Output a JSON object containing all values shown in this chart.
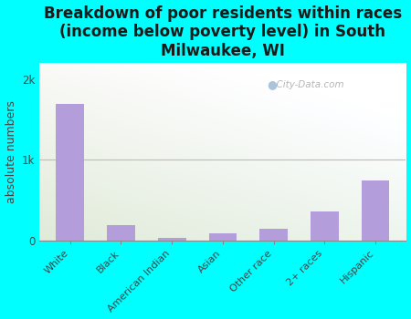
{
  "categories": [
    "White",
    "Black",
    "American Indian",
    "Asian",
    "Other race",
    "2+ races",
    "Hispanic"
  ],
  "values": [
    1700,
    190,
    28,
    85,
    140,
    360,
    740
  ],
  "bar_color": "#b39ddb",
  "title": "Breakdown of poor residents within races\n(income below poverty level) in South\nMilwaukee, WI",
  "ylabel": "absolute numbers",
  "ylim": [
    0,
    2200
  ],
  "ytick_labels": [
    "0",
    "1k",
    "2k"
  ],
  "ytick_values": [
    0,
    1000,
    2000
  ],
  "background_color": "#00ffff",
  "watermark_text": "City-Data.com",
  "title_fontsize": 12,
  "ylabel_fontsize": 9,
  "title_color": "#1a1a1a",
  "axis_label_color": "#444444",
  "grid_color": "#e0d0d0",
  "plot_bg_left_bottom": "#d4e8b0",
  "plot_bg_right_top": "#f8faf0"
}
